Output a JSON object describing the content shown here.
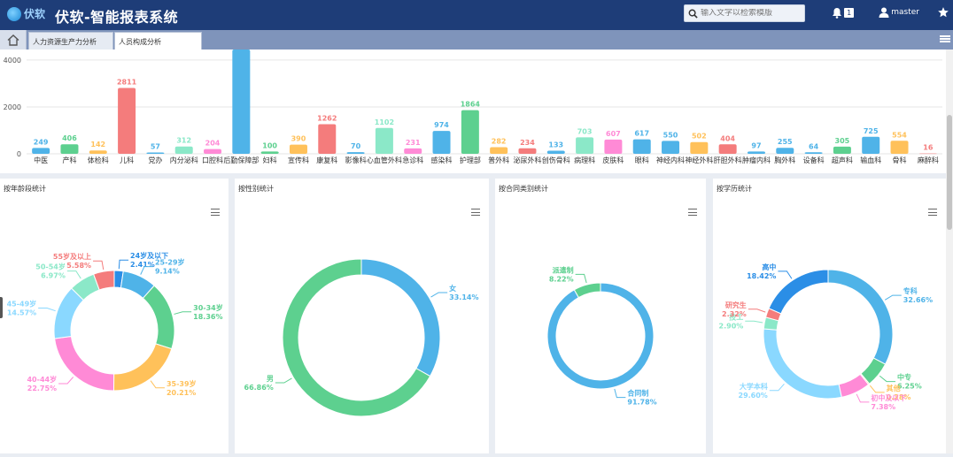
{
  "app": {
    "logo_text": "伏软",
    "title": "伏软-智能报表系统"
  },
  "search": {
    "placeholder": "输入文字以检索模版",
    "icon": "search-icon"
  },
  "header": {
    "notification_count": "1",
    "user_name": "master"
  },
  "tabs": [
    {
      "label": "人力资源生产力分析",
      "active": false
    },
    {
      "label": "人员构成分析",
      "active": true
    }
  ],
  "chart_data": [
    {
      "type": "bar",
      "title": "",
      "categories": [
        "中医",
        "产科",
        "体检科",
        "儿科",
        "党办",
        "内分泌科",
        "口腔科",
        "后勤保障部",
        "妇科",
        "宣传科",
        "康复科",
        "影像科",
        "心血管外科",
        "急诊科",
        "感染科",
        "护理部",
        "普外科",
        "泌尿外科",
        "创伤骨科",
        "病理科",
        "皮肤科",
        "眼科",
        "神经内科",
        "神经外科",
        "肝胆外科",
        "肿瘤内科",
        "胸外科",
        "设备科",
        "超声科",
        "输血科",
        "骨科",
        "麻醉科"
      ],
      "values": [
        249,
        406,
        142,
        2811,
        57,
        312,
        204,
        4450,
        100,
        390,
        1262,
        70,
        1102,
        231,
        974,
        1864,
        282,
        234,
        133,
        703,
        607,
        617,
        550,
        502,
        404,
        97,
        255,
        64,
        305,
        725,
        554,
        16
      ],
      "value_labels": [
        "249",
        "406",
        "142",
        "2811",
        "57",
        "312",
        "204",
        "",
        "100",
        "390",
        "1262",
        "70",
        "1102",
        "231",
        "974",
        "1864",
        "282",
        "234",
        "133",
        "703",
        "607",
        "617",
        "550",
        "502",
        "404",
        "97",
        "255",
        "64",
        "305",
        "725",
        "554",
        "16"
      ],
      "colors": [
        "#4fb3e8",
        "#5dd08f",
        "#ffc15a",
        "#f47c7c",
        "#4fb3e8",
        "#8be8c8",
        "#ff8ad6",
        "#4fb3e8",
        "#5dd08f",
        "#ffc15a",
        "#f47c7c",
        "#4fb3e8",
        "#8be8c8",
        "#ff8ad6",
        "#4fb3e8",
        "#5dd08f",
        "#ffc15a",
        "#f47c7c",
        "#4fb3e8",
        "#8be8c8",
        "#ff8ad6",
        "#4fb3e8",
        "#4fb3e8",
        "#ffc15a",
        "#f47c7c",
        "#4fb3e8",
        "#4fb3e8",
        "#4fb3e8",
        "#5dd08f",
        "#4fb3e8",
        "#ffc15a",
        "#f47c7c"
      ],
      "yticks": [
        "0",
        "2000",
        "4000"
      ],
      "ylim": [
        0,
        4450
      ]
    },
    {
      "type": "pie",
      "title": "按年龄段统计",
      "slices": [
        {
          "label": "24岁及以下",
          "value": 2.41,
          "text": "2.41%",
          "color": "#2b8ee6"
        },
        {
          "label": "25-29岁",
          "value": 9.14,
          "text": "9.14%",
          "color": "#4fb3e8"
        },
        {
          "label": "30-34岁",
          "value": 18.36,
          "text": "18.36%",
          "color": "#5dd08f"
        },
        {
          "label": "35-39岁",
          "value": 20.21,
          "text": "20.21%",
          "color": "#ffc15a"
        },
        {
          "label": "40-44岁",
          "value": 22.75,
          "text": "22.75%",
          "color": "#ff8ad6"
        },
        {
          "label": "45-49岁",
          "value": 14.57,
          "text": "14.57%",
          "color": "#8ad8ff"
        },
        {
          "label": "50-54岁",
          "value": 6.97,
          "text": "6.97%",
          "color": "#8be8c8"
        },
        {
          "label": "55岁及以上",
          "value": 5.58,
          "text": "5.58%",
          "color": "#f47c7c"
        }
      ]
    },
    {
      "type": "pie",
      "title": "按性别统计",
      "slices": [
        {
          "label": "女",
          "value": 33.14,
          "text": "33.14%",
          "color": "#4fb3e8"
        },
        {
          "label": "男",
          "value": 66.86,
          "text": "66.86%",
          "color": "#5dd08f"
        }
      ]
    },
    {
      "type": "pie",
      "title": "按合同类别统计",
      "slices": [
        {
          "label": "合同制",
          "value": 91.78,
          "text": "91.78%",
          "color": "#4fb3e8"
        },
        {
          "label": "派遣制",
          "value": 8.22,
          "text": "8.22%",
          "color": "#5dd08f"
        }
      ]
    },
    {
      "type": "pie",
      "title": "按学历统计",
      "slices": [
        {
          "label": "专科",
          "value": 32.66,
          "text": "32.66%",
          "color": "#4fb3e8"
        },
        {
          "label": "中专",
          "value": 6.25,
          "text": "6.25%",
          "color": "#5dd08f"
        },
        {
          "label": "其他",
          "value": 0.28,
          "text": "0.28%",
          "color": "#ffc15a"
        },
        {
          "label": "初中及以下",
          "value": 7.38,
          "text": "7.38%",
          "color": "#ff8ad6"
        },
        {
          "label": "大学本科",
          "value": 29.6,
          "text": "29.60%",
          "color": "#8ad8ff"
        },
        {
          "label": "技工",
          "value": 2.9,
          "text": "2.90%",
          "color": "#8be8c8"
        },
        {
          "label": "研究生",
          "value": 2.32,
          "text": "2.32%",
          "color": "#f47c7c"
        },
        {
          "label": "高中",
          "value": 18.42,
          "text": "18.42%",
          "color": "#2b8ee6"
        }
      ]
    }
  ]
}
